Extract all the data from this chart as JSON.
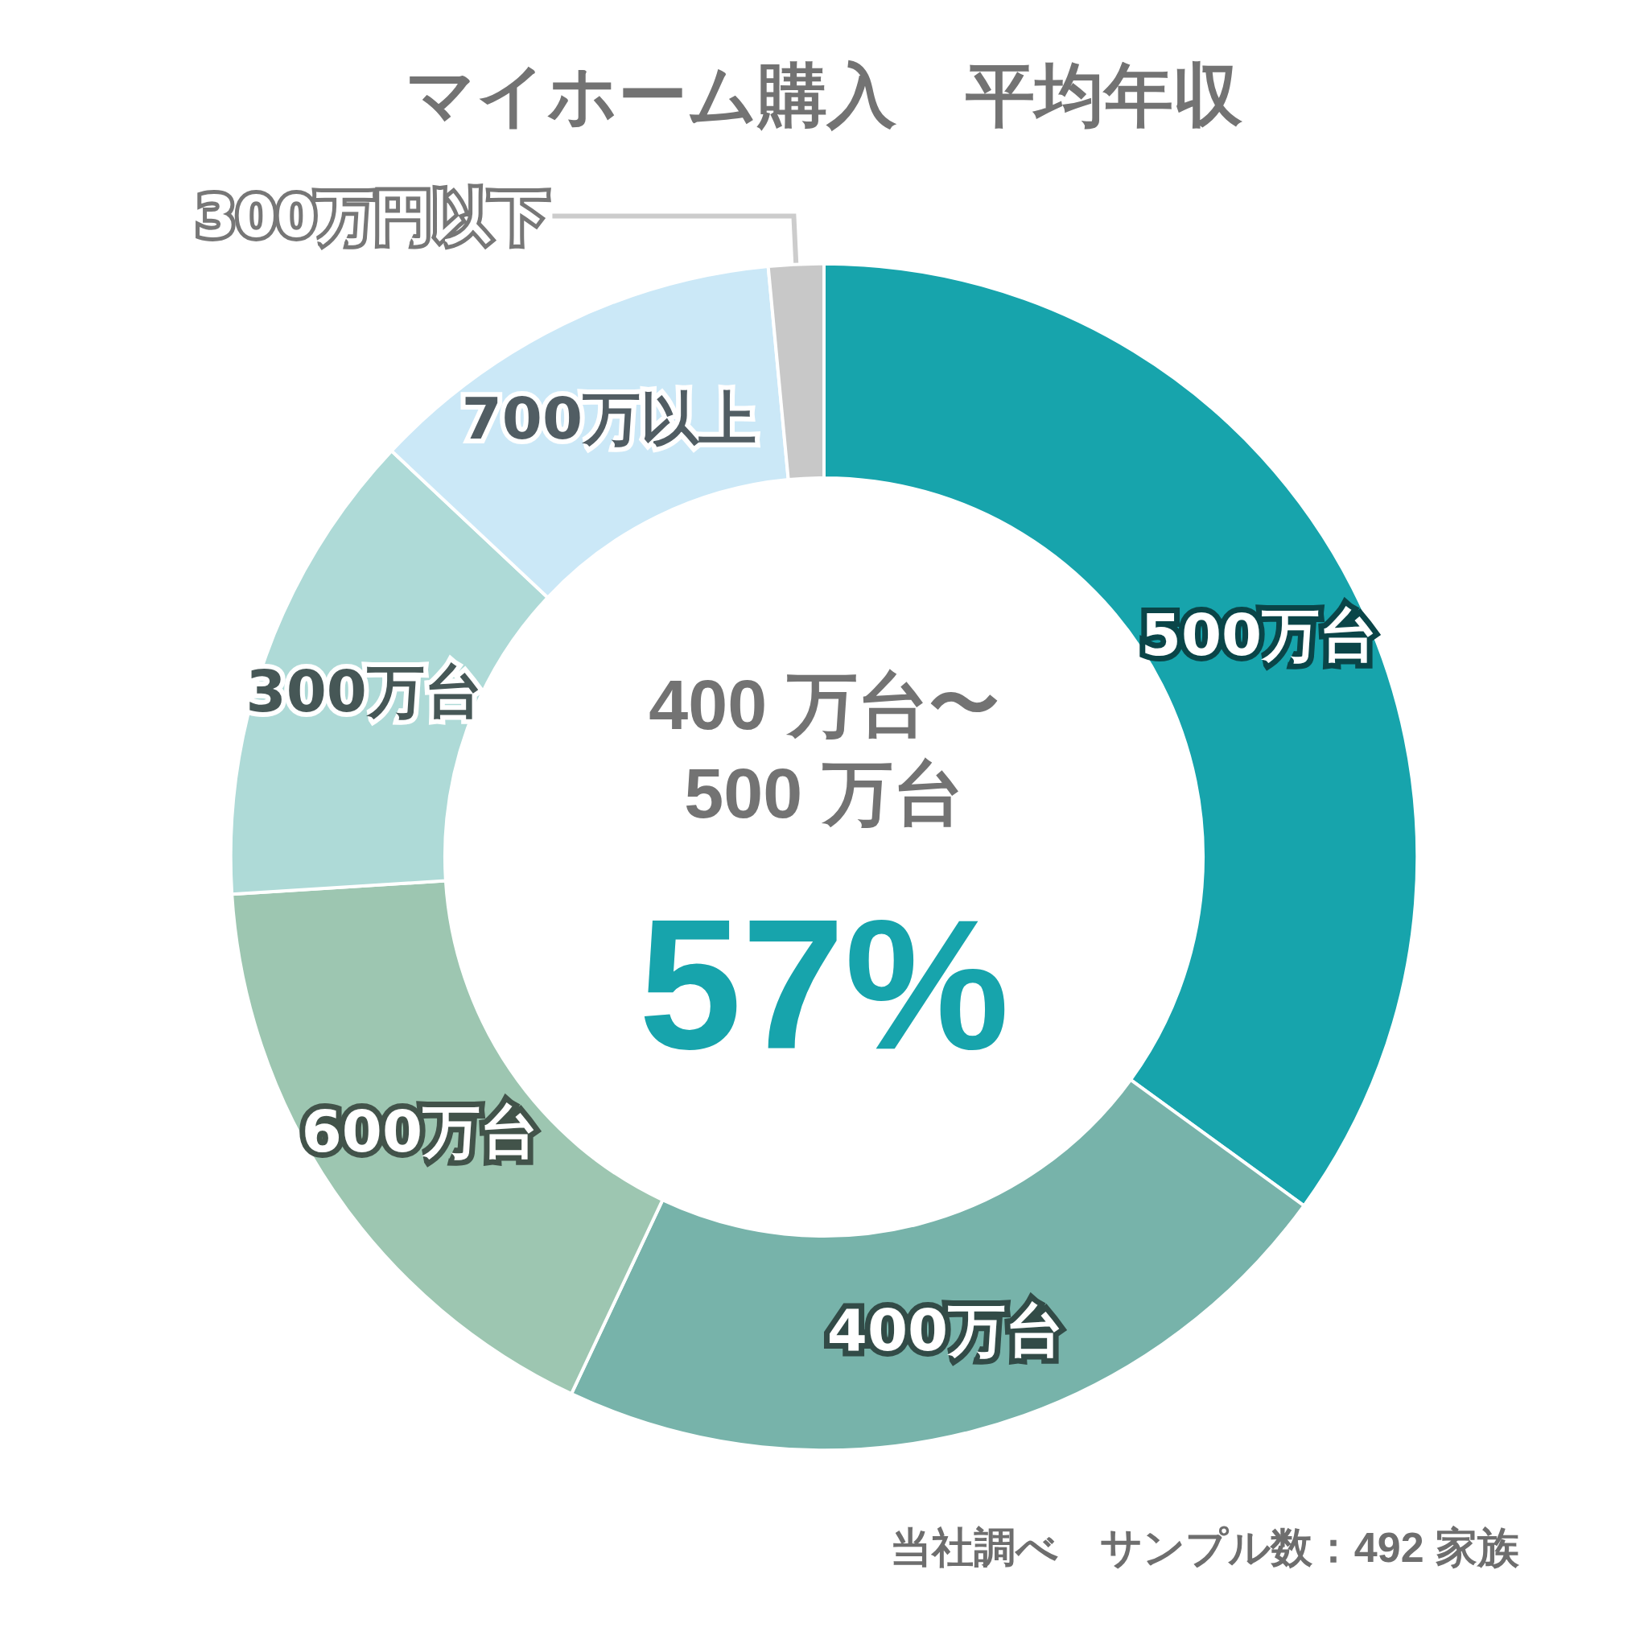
{
  "chart_data": {
    "type": "donut",
    "title": "マイホーム購入　平均年収",
    "categories": [
      "500万台",
      "400万台",
      "600万台",
      "300万台",
      "700万以上",
      "300万円以下"
    ],
    "values": [
      35,
      22,
      17,
      13,
      11.5,
      1.5
    ],
    "colors": [
      "#17a4ac",
      "#77b3aa",
      "#9dc6b1",
      "#aedad7",
      "#cbe8f7",
      "#c8c8c8"
    ],
    "legend": false,
    "annotations": [
      "400 万台〜\n500 万台",
      "57%",
      "当社調べ　サンプル数：492 家族"
    ]
  }
}
